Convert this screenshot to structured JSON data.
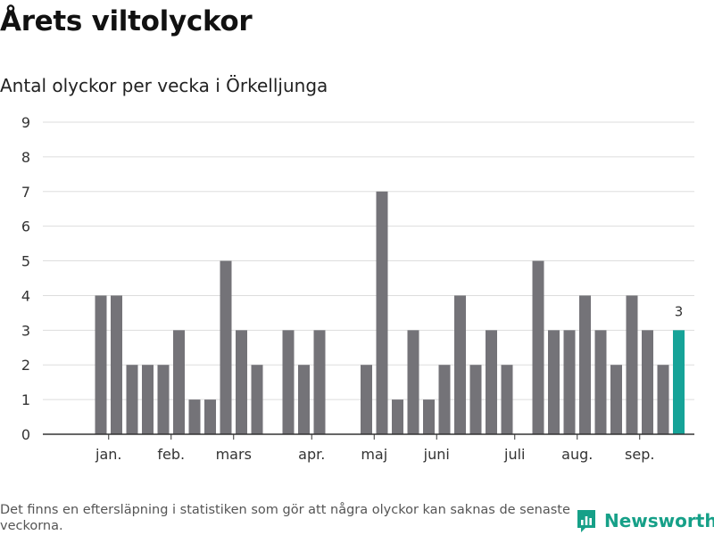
{
  "title": "Årets viltolyckor",
  "subtitle": "Antal olyckor per vecka i Örkelljunga",
  "footnote": "Det finns en eftersläpning i statistiken som gör att några olyckor kan saknas de senaste veckorna.",
  "brand": {
    "name": "Newsworthy",
    "icon": "newsworthy-logo-icon"
  },
  "colors": {
    "bar": "#747378",
    "highlight": "#16a398",
    "grid": "#dddddd",
    "axis": "#333333",
    "brand": "#16a088"
  },
  "chart_data": {
    "type": "bar",
    "title": "Antal olyckor per vecka i Örkelljunga",
    "xlabel": "",
    "ylabel": "",
    "ylim": [
      0,
      9
    ],
    "yticks": [
      0,
      1,
      2,
      3,
      4,
      5,
      6,
      7,
      8,
      9
    ],
    "grid": true,
    "weeks": [
      1,
      2,
      3,
      4,
      5,
      6,
      7,
      8,
      9,
      10,
      11,
      12,
      13,
      14,
      15,
      16,
      17,
      18,
      19,
      20,
      21,
      22,
      23,
      24,
      25,
      26,
      27,
      28,
      29,
      30,
      31,
      32,
      33,
      34,
      35,
      36,
      37,
      38,
      39,
      40
    ],
    "values": [
      0,
      0,
      4,
      4,
      2,
      2,
      2,
      3,
      1,
      1,
      5,
      3,
      2,
      0,
      3,
      2,
      3,
      0,
      0,
      2,
      7,
      1,
      3,
      1,
      2,
      4,
      2,
      3,
      2,
      0,
      5,
      3,
      3,
      4,
      3,
      2,
      4,
      3,
      2,
      3
    ],
    "highlight_index": 39,
    "highlight_label": "3",
    "month_labels": [
      {
        "label": "jan.",
        "week": 3.5
      },
      {
        "label": "feb.",
        "week": 7.5
      },
      {
        "label": "mars",
        "week": 11.5
      },
      {
        "label": "apr.",
        "week": 16.5
      },
      {
        "label": "maj",
        "week": 20.5
      },
      {
        "label": "juni",
        "week": 24.5
      },
      {
        "label": "juli",
        "week": 29.5
      },
      {
        "label": "aug.",
        "week": 33.5
      },
      {
        "label": "sep.",
        "week": 37.5
      }
    ]
  }
}
